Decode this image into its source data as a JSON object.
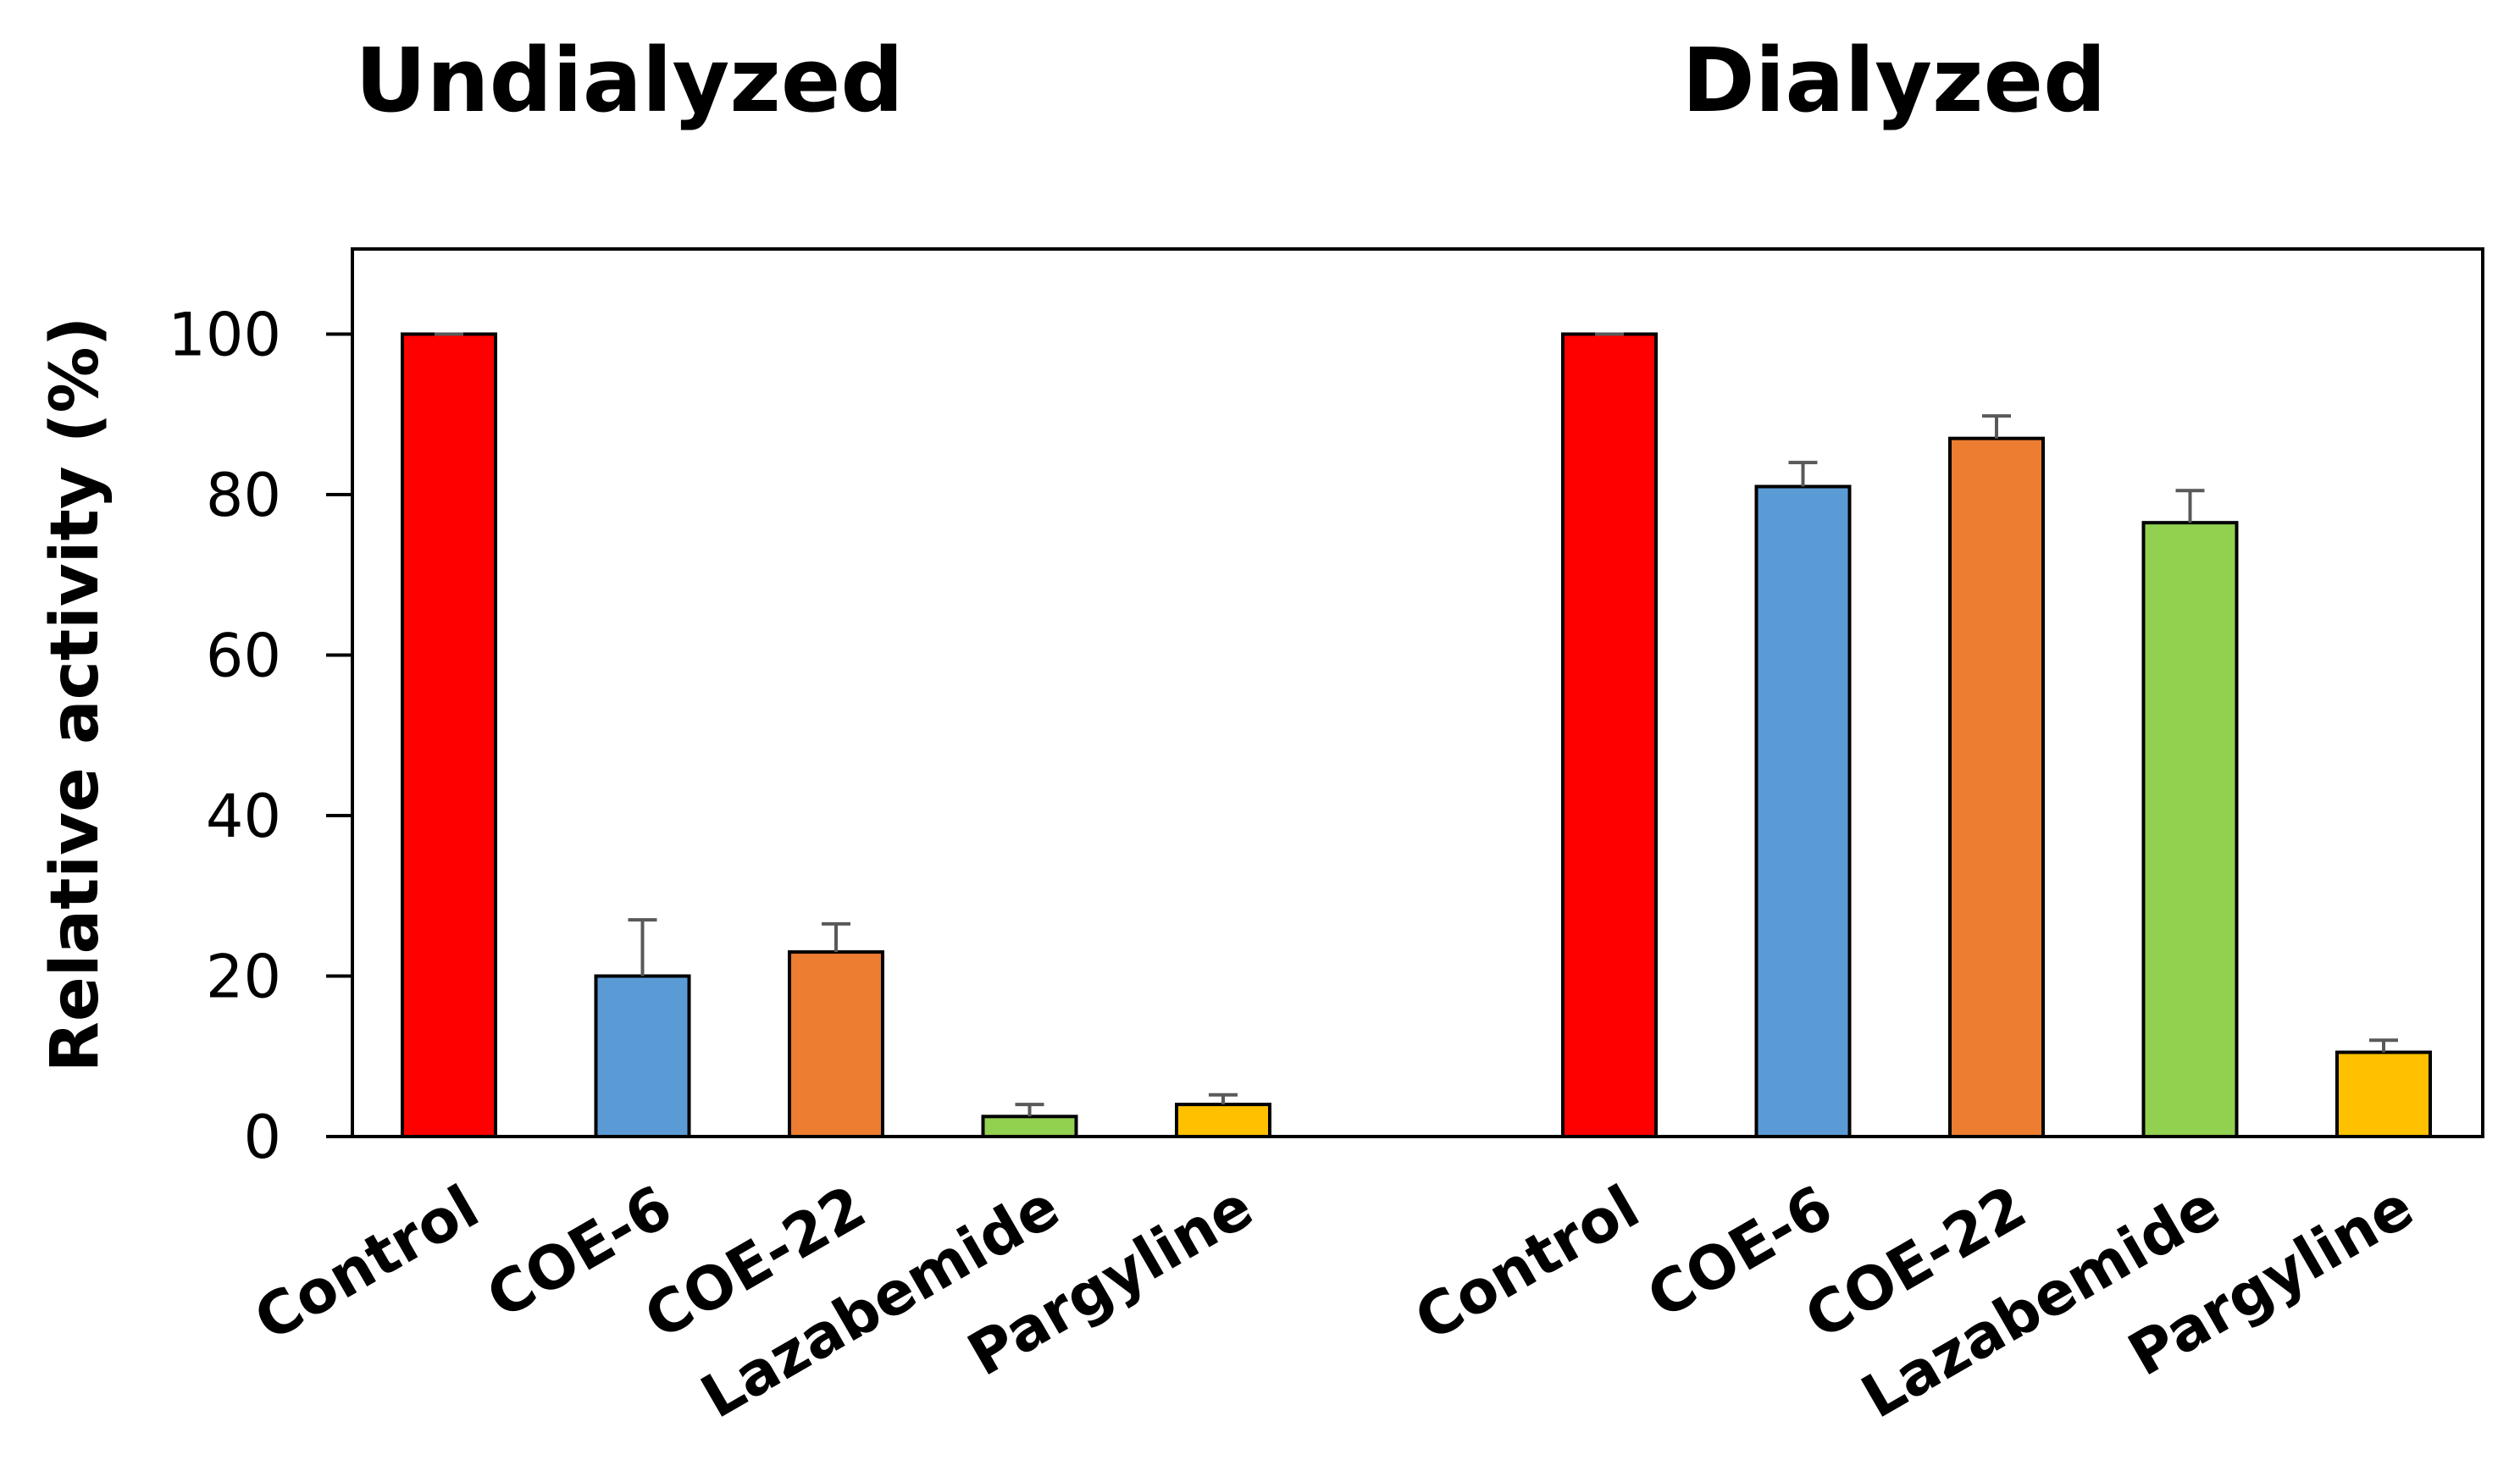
{
  "chart_data": {
    "type": "bar",
    "ylabel": "Relative activity (%)",
    "ylim": [
      0,
      110
    ],
    "yticks": [
      "0",
      "20",
      "40",
      "60",
      "80",
      "100"
    ],
    "categories": [
      "Control",
      "COE-6",
      "COE-22",
      "Lazabemide",
      "Pargyline"
    ],
    "colors": [
      "#FF0000",
      "#5B9BD5",
      "#ED7D31",
      "#92D050",
      "#FFC000"
    ],
    "groups": [
      {
        "name": "Undialyzed",
        "values": [
          100,
          20,
          23,
          2.5,
          4
        ],
        "errors": [
          0,
          7,
          3.5,
          1.5,
          1.2
        ]
      },
      {
        "name": "Dialyzed",
        "values": [
          100,
          81,
          87,
          76.5,
          10.5
        ],
        "errors": [
          0,
          3,
          2.8,
          4,
          1.5
        ]
      }
    ]
  }
}
